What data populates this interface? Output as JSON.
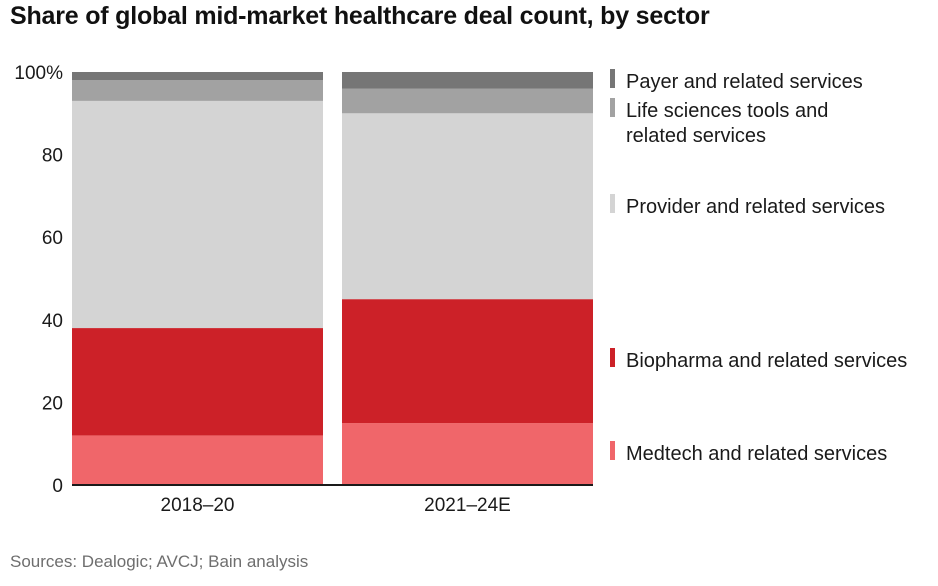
{
  "chart_data": {
    "type": "bar",
    "stacked": true,
    "title": "Share of global mid-market healthcare deal count, by sector",
    "xlabel": "",
    "ylabel": "",
    "ylim": [
      0,
      100
    ],
    "yticks": [
      0,
      20,
      40,
      60,
      80,
      100
    ],
    "ytick_labels": [
      "0",
      "20",
      "40",
      "60",
      "80",
      "100%"
    ],
    "grid": false,
    "legend_position": "right",
    "categories": [
      "2018–20",
      "2021–24E"
    ],
    "series": [
      {
        "name": "Medtech and related services",
        "color": "#f0666a",
        "values": [
          12,
          15
        ]
      },
      {
        "name": "Biopharma and related services",
        "color": "#cc2128",
        "values": [
          26,
          30
        ]
      },
      {
        "name": "Provider and related services",
        "color": "#d4d4d4",
        "values": [
          55,
          45
        ]
      },
      {
        "name": "Life sciences tools and related services",
        "color": "#a2a2a2",
        "values": [
          5,
          6
        ]
      },
      {
        "name": "Payer and related services",
        "color": "#767676",
        "values": [
          2,
          4
        ]
      }
    ],
    "legend": [
      {
        "lines": [
          "Payer and related services"
        ],
        "color": "#767676"
      },
      {
        "lines": [
          "Life sciences tools and",
          "related services"
        ],
        "color": "#a2a2a2"
      },
      {
        "lines": [
          "Provider and related services"
        ],
        "color": "#d4d4d4"
      },
      {
        "lines": [
          "Biopharma and related services"
        ],
        "color": "#cc2128"
      },
      {
        "lines": [
          "Medtech and related services"
        ],
        "color": "#f0666a"
      }
    ]
  },
  "source": "Sources: Dealogic; AVCJ; Bain analysis"
}
